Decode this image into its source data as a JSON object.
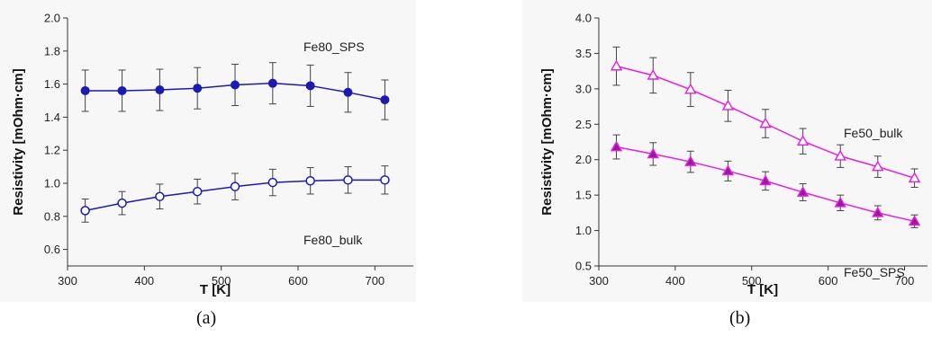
{
  "captions": [
    "(a)",
    "(b)"
  ],
  "chart_data": [
    {
      "type": "line",
      "panel_caption": "(a)",
      "xlabel": "T [K]",
      "ylabel": "Resistivity [mOhm·cm]",
      "xlim": [
        300,
        750
      ],
      "ylim": [
        0.5,
        2.0
      ],
      "xticks": [
        "300",
        "400",
        "500",
        "600",
        "700"
      ],
      "yticks": [
        "0.6",
        "0.8",
        "1.0",
        "1.2",
        "1.4",
        "1.6",
        "1.8",
        "2.0"
      ],
      "grid": false,
      "series": [
        {
          "name": "Fe80_SPS",
          "color": "#1a1ab4",
          "marker": "filled-circle",
          "x": [
            323,
            371,
            420,
            469,
            518,
            567,
            616,
            665,
            713
          ],
          "y": [
            1.56,
            1.56,
            1.565,
            1.575,
            1.595,
            1.605,
            1.59,
            1.55,
            1.505
          ],
          "err": [
            0.125,
            0.125,
            0.125,
            0.125,
            0.125,
            0.125,
            0.125,
            0.12,
            0.12
          ]
        },
        {
          "name": "Fe80_bulk",
          "color": "#1a1ab4",
          "marker": "open-circle",
          "x": [
            323,
            371,
            420,
            469,
            518,
            567,
            616,
            665,
            713
          ],
          "y": [
            0.835,
            0.88,
            0.92,
            0.95,
            0.98,
            1.005,
            1.015,
            1.02,
            1.02
          ],
          "err": [
            0.07,
            0.07,
            0.075,
            0.075,
            0.08,
            0.08,
            0.08,
            0.08,
            0.085
          ]
        }
      ]
    },
    {
      "type": "line",
      "panel_caption": "(b)",
      "xlabel": "T [K]",
      "ylabel": "Resistivity [mOhm·cm]",
      "xlim": [
        300,
        730
      ],
      "ylim": [
        0.5,
        4.0
      ],
      "xticks": [
        "300",
        "400",
        "500",
        "600",
        "700"
      ],
      "yticks": [
        "0.5",
        "1.0",
        "1.5",
        "2.0",
        "2.5",
        "3.0",
        "3.5",
        "4.0"
      ],
      "grid": false,
      "series": [
        {
          "name": "Fe50_bulk",
          "color": "#e61ee6",
          "marker": "open-triangle",
          "x": [
            323,
            371,
            420,
            469,
            518,
            567,
            616,
            665,
            713
          ],
          "y": [
            3.32,
            3.19,
            2.99,
            2.76,
            2.51,
            2.26,
            2.05,
            1.9,
            1.74
          ],
          "err": [
            0.27,
            0.25,
            0.24,
            0.22,
            0.2,
            0.18,
            0.16,
            0.15,
            0.13
          ]
        },
        {
          "name": "Fe50_SPS",
          "color": "#e61ee6",
          "marker": "filled-triangle",
          "x": [
            323,
            371,
            420,
            469,
            518,
            567,
            616,
            665,
            713
          ],
          "y": [
            2.18,
            2.08,
            1.97,
            1.84,
            1.7,
            1.54,
            1.39,
            1.25,
            1.13
          ],
          "err": [
            0.17,
            0.16,
            0.15,
            0.14,
            0.13,
            0.12,
            0.11,
            0.1,
            0.09
          ]
        }
      ]
    }
  ]
}
